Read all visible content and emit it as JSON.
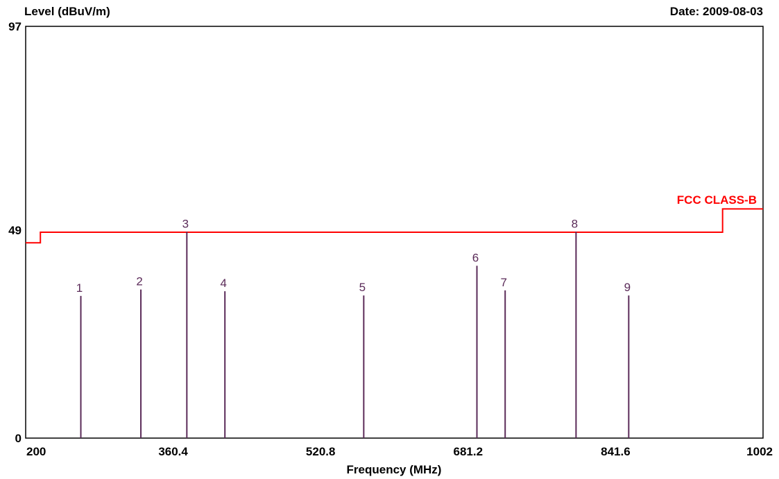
{
  "chart_data": {
    "type": "bar",
    "ylabel": "Level (dBuV/m)",
    "date_label": "Date: 2009-08-03",
    "xlabel": "Frequency (MHz)",
    "xlim": [
      200,
      1002
    ],
    "ylim": [
      0,
      97
    ],
    "x_ticks": [
      "200",
      "360.4",
      "520.8",
      "681.2",
      "841.6",
      "1002"
    ],
    "y_ticks": [
      "97",
      "49",
      "0"
    ],
    "grid": false,
    "series": [
      {
        "name": "",
        "points": [
          {
            "label": "1",
            "x": 260.0,
            "y": 33.5
          },
          {
            "label": "2",
            "x": 325.3,
            "y": 35.0
          },
          {
            "label": "3",
            "x": 375.3,
            "y": 48.6
          },
          {
            "label": "4",
            "x": 416.7,
            "y": 34.6
          },
          {
            "label": "5",
            "x": 567.7,
            "y": 33.6
          },
          {
            "label": "6",
            "x": 690.8,
            "y": 40.6
          },
          {
            "label": "7",
            "x": 721.5,
            "y": 34.8
          },
          {
            "label": "8",
            "x": 798.6,
            "y": 48.6
          },
          {
            "label": "9",
            "x": 855.9,
            "y": 33.6
          }
        ]
      }
    ],
    "limit_line": {
      "name": "FCC CLASS-B",
      "color": "#ff0000",
      "points": [
        [
          200,
          46.0
        ],
        [
          216,
          46.0
        ],
        [
          216,
          48.5
        ],
        [
          958,
          48.5
        ],
        [
          958,
          54.0
        ],
        [
          1002,
          54.0
        ]
      ]
    },
    "marker_color": "#5a2a58"
  }
}
